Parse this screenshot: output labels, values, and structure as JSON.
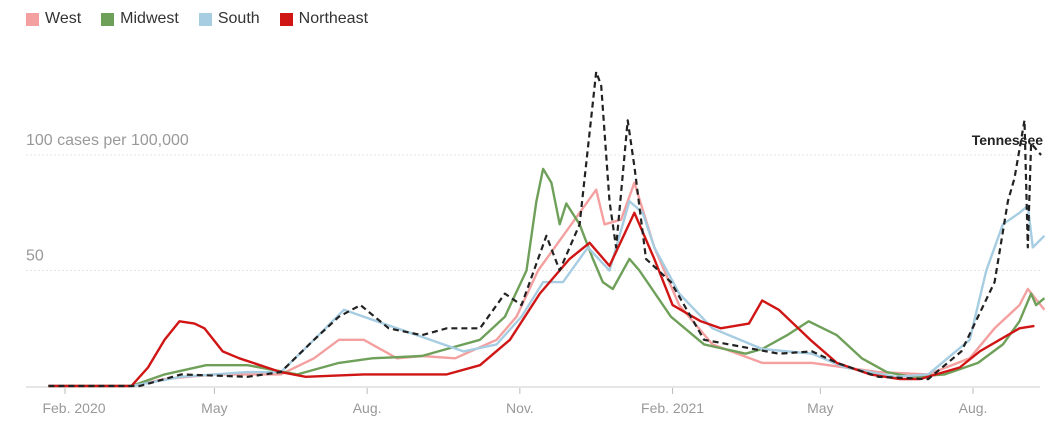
{
  "legend": [
    {
      "name": "West",
      "color": "#f4a0a0"
    },
    {
      "name": "Midwest",
      "color": "#6fa05a"
    },
    {
      "name": "South",
      "color": "#a6cde2"
    },
    {
      "name": "Northeast",
      "color": "#d01515"
    }
  ],
  "chart_data": {
    "type": "line",
    "x_unit": "days since Feb. 1, 2020",
    "ylabel": "cases per 100,000",
    "ylim": [
      0,
      140
    ],
    "yticks": [
      {
        "value": 50,
        "label": "50"
      },
      {
        "value": 100,
        "label": "100 cases per 100,000"
      }
    ],
    "xticks": [
      {
        "day": 0,
        "label": "Feb. 2020"
      },
      {
        "day": 90,
        "label": "May"
      },
      {
        "day": 182,
        "label": "Aug."
      },
      {
        "day": 274,
        "label": "Nov."
      },
      {
        "day": 366,
        "label": "Feb. 2021"
      },
      {
        "day": 455,
        "label": "May"
      },
      {
        "day": 547,
        "label": "Aug."
      }
    ],
    "annotation": {
      "text": "Tennessee",
      "series": "Tennessee"
    },
    "series": [
      {
        "name": "West",
        "color": "#f4a0a0",
        "dashed": false,
        "points": [
          [
            -10,
            0
          ],
          [
            40,
            0
          ],
          [
            60,
            3
          ],
          [
            90,
            5
          ],
          [
            130,
            5
          ],
          [
            150,
            12
          ],
          [
            165,
            20
          ],
          [
            180,
            20
          ],
          [
            200,
            12
          ],
          [
            215,
            13
          ],
          [
            235,
            12
          ],
          [
            260,
            20
          ],
          [
            272,
            30
          ],
          [
            285,
            50
          ],
          [
            295,
            60
          ],
          [
            310,
            75
          ],
          [
            320,
            85
          ],
          [
            325,
            70
          ],
          [
            335,
            72
          ],
          [
            343,
            88
          ],
          [
            355,
            60
          ],
          [
            370,
            35
          ],
          [
            390,
            18
          ],
          [
            420,
            10
          ],
          [
            450,
            10
          ],
          [
            490,
            6
          ],
          [
            520,
            5
          ],
          [
            545,
            12
          ],
          [
            560,
            25
          ],
          [
            575,
            35
          ],
          [
            580,
            42
          ],
          [
            590,
            33
          ]
        ]
      },
      {
        "name": "Midwest",
        "color": "#6fa05a",
        "dashed": false,
        "points": [
          [
            -10,
            0
          ],
          [
            40,
            0
          ],
          [
            60,
            5
          ],
          [
            85,
            9
          ],
          [
            110,
            9
          ],
          [
            140,
            5
          ],
          [
            165,
            10
          ],
          [
            185,
            12
          ],
          [
            215,
            13
          ],
          [
            230,
            16
          ],
          [
            250,
            20
          ],
          [
            265,
            30
          ],
          [
            278,
            50
          ],
          [
            284,
            80
          ],
          [
            288,
            94
          ],
          [
            293,
            88
          ],
          [
            298,
            70
          ],
          [
            302,
            79
          ],
          [
            310,
            70
          ],
          [
            318,
            55
          ],
          [
            324,
            45
          ],
          [
            330,
            42
          ],
          [
            340,
            55
          ],
          [
            346,
            50
          ],
          [
            365,
            30
          ],
          [
            385,
            18
          ],
          [
            410,
            14
          ],
          [
            420,
            16
          ],
          [
            435,
            22
          ],
          [
            448,
            28
          ],
          [
            465,
            22
          ],
          [
            480,
            12
          ],
          [
            495,
            6
          ],
          [
            510,
            4
          ],
          [
            530,
            5
          ],
          [
            550,
            10
          ],
          [
            565,
            18
          ],
          [
            575,
            28
          ],
          [
            582,
            40
          ],
          [
            585,
            35
          ],
          [
            590,
            38
          ]
        ]
      },
      {
        "name": "South",
        "color": "#a6cde2",
        "dashed": false,
        "points": [
          [
            -10,
            0
          ],
          [
            40,
            0
          ],
          [
            70,
            4
          ],
          [
            110,
            6
          ],
          [
            130,
            6
          ],
          [
            150,
            20
          ],
          [
            168,
            33
          ],
          [
            180,
            30
          ],
          [
            200,
            25
          ],
          [
            220,
            20
          ],
          [
            240,
            15
          ],
          [
            260,
            18
          ],
          [
            275,
            30
          ],
          [
            288,
            45
          ],
          [
            300,
            45
          ],
          [
            315,
            60
          ],
          [
            328,
            50
          ],
          [
            340,
            80
          ],
          [
            348,
            75
          ],
          [
            355,
            60
          ],
          [
            370,
            40
          ],
          [
            390,
            25
          ],
          [
            420,
            16
          ],
          [
            450,
            14
          ],
          [
            470,
            8
          ],
          [
            500,
            4
          ],
          [
            520,
            5
          ],
          [
            545,
            20
          ],
          [
            555,
            50
          ],
          [
            565,
            70
          ],
          [
            575,
            75
          ],
          [
            580,
            78
          ],
          [
            583,
            60
          ],
          [
            590,
            65
          ]
        ]
      },
      {
        "name": "Northeast",
        "color": "#d01515",
        "dashed": false,
        "points": [
          [
            -10,
            0
          ],
          [
            40,
            0
          ],
          [
            50,
            8
          ],
          [
            60,
            20
          ],
          [
            69,
            28
          ],
          [
            78,
            27
          ],
          [
            84,
            25
          ],
          [
            95,
            15
          ],
          [
            105,
            12
          ],
          [
            130,
            6
          ],
          [
            145,
            4
          ],
          [
            180,
            5
          ],
          [
            230,
            5
          ],
          [
            250,
            9
          ],
          [
            268,
            20
          ],
          [
            286,
            40
          ],
          [
            304,
            55
          ],
          [
            316,
            62
          ],
          [
            328,
            52
          ],
          [
            343,
            75
          ],
          [
            355,
            55
          ],
          [
            366,
            35
          ],
          [
            383,
            28
          ],
          [
            395,
            25
          ],
          [
            412,
            27
          ],
          [
            420,
            37
          ],
          [
            430,
            33
          ],
          [
            449,
            20
          ],
          [
            465,
            10
          ],
          [
            485,
            5
          ],
          [
            503,
            3
          ],
          [
            515,
            3
          ],
          [
            539,
            8
          ],
          [
            551,
            15
          ],
          [
            563,
            20
          ],
          [
            575,
            25
          ],
          [
            584,
            26
          ]
        ]
      },
      {
        "name": "Tennessee",
        "color": "#222222",
        "dashed": true,
        "points": [
          [
            -10,
            0
          ],
          [
            45,
            0
          ],
          [
            70,
            5
          ],
          [
            110,
            4
          ],
          [
            130,
            6
          ],
          [
            150,
            20
          ],
          [
            165,
            30
          ],
          [
            178,
            35
          ],
          [
            195,
            25
          ],
          [
            215,
            22
          ],
          [
            230,
            25
          ],
          [
            250,
            25
          ],
          [
            265,
            40
          ],
          [
            275,
            35
          ],
          [
            285,
            55
          ],
          [
            290,
            65
          ],
          [
            298,
            50
          ],
          [
            310,
            70
          ],
          [
            320,
            136
          ],
          [
            323,
            130
          ],
          [
            328,
            80
          ],
          [
            332,
            60
          ],
          [
            339,
            115
          ],
          [
            343,
            95
          ],
          [
            350,
            55
          ],
          [
            365,
            45
          ],
          [
            385,
            20
          ],
          [
            400,
            18
          ],
          [
            430,
            14
          ],
          [
            450,
            15
          ],
          [
            465,
            10
          ],
          [
            490,
            4
          ],
          [
            520,
            3
          ],
          [
            540,
            15
          ],
          [
            560,
            45
          ],
          [
            568,
            80
          ],
          [
            572,
            90
          ],
          [
            578,
            115
          ],
          [
            580,
            60
          ],
          [
            582,
            105
          ],
          [
            588,
            100
          ]
        ]
      }
    ]
  }
}
